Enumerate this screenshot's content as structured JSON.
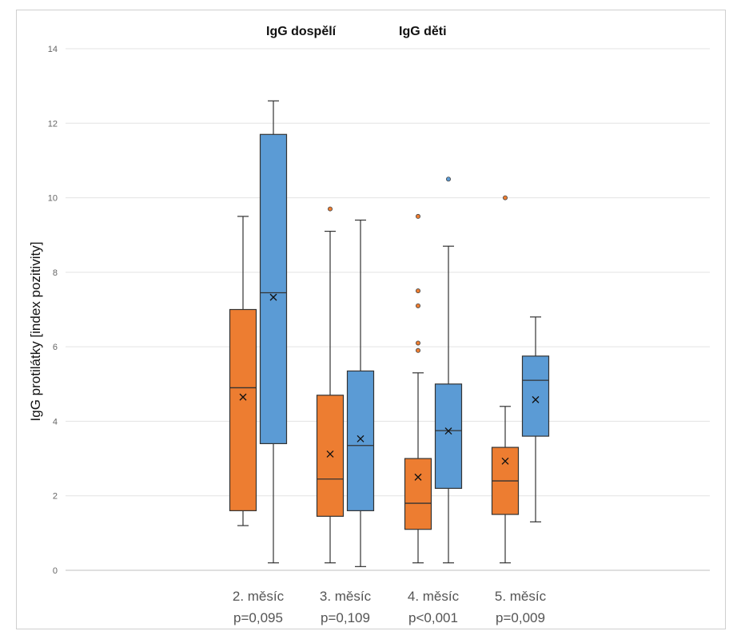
{
  "chart_data": {
    "type": "boxplot",
    "ylabel": "IgG protilátky  [index pozitivity]",
    "ylim": [
      0,
      14
    ],
    "yticks": [
      0,
      2,
      4,
      6,
      8,
      10,
      12,
      14
    ],
    "grid": true,
    "legend_position": "top",
    "categories": [
      "2. měsíc",
      "3. měsíc",
      "4. měsíc",
      "5. měsíc"
    ],
    "p_values": [
      "p=0,095",
      "p=0,109",
      "p<0,001",
      "p=0,009"
    ],
    "series": [
      {
        "name": "IgG dospělí",
        "color": "#ED7D31",
        "boxes": [
          {
            "min": 1.2,
            "q1": 1.6,
            "median": 4.9,
            "q3": 7.0,
            "max": 9.5,
            "mean": 4.65,
            "outliers": []
          },
          {
            "min": 0.2,
            "q1": 1.45,
            "median": 2.45,
            "q3": 4.7,
            "max": 9.1,
            "mean": 3.12,
            "outliers": [
              9.7
            ]
          },
          {
            "min": 0.2,
            "q1": 1.1,
            "median": 1.8,
            "q3": 3.0,
            "max": 5.3,
            "mean": 2.5,
            "outliers": [
              5.9,
              6.1,
              7.1,
              7.5,
              9.5
            ]
          },
          {
            "min": 0.2,
            "q1": 1.5,
            "median": 2.4,
            "q3": 3.3,
            "max": 4.4,
            "mean": 2.93,
            "outliers": [
              10.0
            ]
          }
        ]
      },
      {
        "name": "IgG děti",
        "color": "#5B9BD5",
        "boxes": [
          {
            "min": 0.2,
            "q1": 3.4,
            "median": 7.45,
            "q3": 11.7,
            "max": 12.6,
            "mean": 7.33,
            "outliers": []
          },
          {
            "min": 0.1,
            "q1": 1.6,
            "median": 3.35,
            "q3": 5.35,
            "max": 9.4,
            "mean": 3.53,
            "outliers": []
          },
          {
            "min": 0.2,
            "q1": 2.2,
            "median": 3.75,
            "q3": 5.0,
            "max": 8.7,
            "mean": 3.74,
            "outliers": [
              10.5
            ]
          },
          {
            "min": 1.3,
            "q1": 3.6,
            "median": 5.1,
            "q3": 5.75,
            "max": 6.8,
            "mean": 4.58,
            "outliers": []
          }
        ]
      }
    ]
  }
}
